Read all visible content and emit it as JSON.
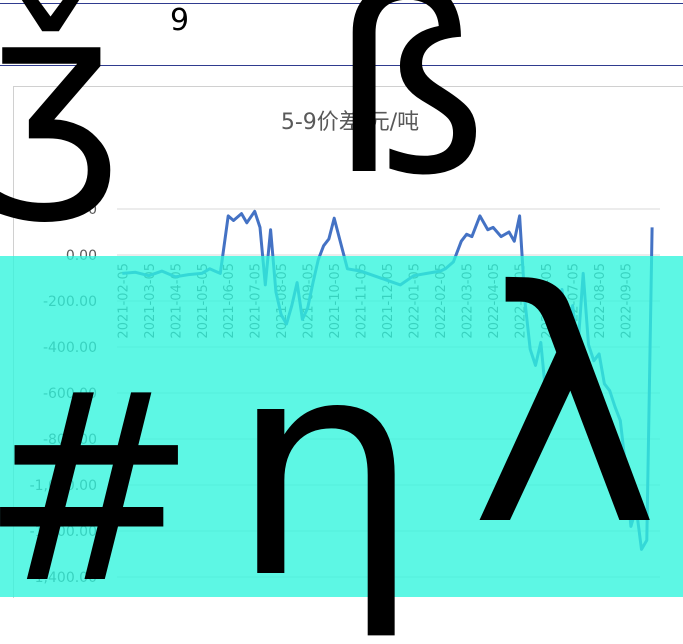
{
  "header": {
    "partial_label": "9"
  },
  "chart_data": {
    "type": "line",
    "title": "5-9价差 元/吨",
    "ylim": [
      -1400,
      200
    ],
    "yticks": [
      200,
      0,
      -200,
      -400,
      -600,
      -800,
      -1000,
      -1200,
      -1400
    ],
    "ytick_labels": [
      "200.00",
      "0.00",
      "-200.00",
      "-400.00",
      "-600.00",
      "-800.00",
      "-1,000.00",
      "-1,200.00",
      "-1,400.00"
    ],
    "xtick_labels": [
      "2021-02-05",
      "2021-03-05",
      "2021-04-05",
      "2021-05-05",
      "2021-06-05",
      "2021-07-05",
      "2021-08-05",
      "2021-09-05",
      "2021-10-05",
      "2021-11-05",
      "2021-12-05",
      "2022-01-05",
      "2022-02-05",
      "2022-03-05",
      "2022-04-05",
      "2022-05-05",
      "2022-06-05",
      "2022-07-05",
      "2022-08-05",
      "2022-09-05"
    ],
    "grid": true,
    "series": [
      {
        "color": "#4472c4",
        "x": [
          0,
          0.5,
          1,
          1.5,
          2,
          2.5,
          3,
          3.3,
          3.5,
          3.7,
          4,
          4.2,
          4.5,
          4.7,
          5,
          5.2,
          5.4,
          5.6,
          5.8,
          6,
          6.2,
          6.4,
          6.6,
          6.8,
          7,
          7.2,
          7.4,
          7.6,
          7.8,
          8,
          8.5,
          9,
          9.5,
          10,
          10.5,
          11,
          11.5,
          12,
          12.2,
          12.5,
          12.8,
          13,
          13.2,
          13.5,
          13.8,
          14,
          14.3,
          14.6,
          14.8,
          15,
          15.2,
          15.4,
          15.6,
          15.8,
          16,
          16.2,
          16.4,
          16.6,
          16.8,
          17,
          17.2,
          17.4,
          17.6,
          17.8,
          18,
          18.2,
          18.4,
          18.6,
          18.8,
          19,
          19.2,
          19.4,
          19.6,
          19.8,
          20
        ],
        "values": [
          -80,
          -75,
          -90,
          -70,
          -95,
          -85,
          -80,
          -60,
          -70,
          -80,
          170,
          150,
          180,
          140,
          190,
          120,
          -130,
          110,
          -160,
          -260,
          -300,
          -220,
          -120,
          -280,
          -230,
          -120,
          -20,
          40,
          70,
          160,
          -60,
          -70,
          -90,
          -110,
          -130,
          -90,
          -80,
          -70,
          -60,
          -30,
          60,
          90,
          80,
          170,
          110,
          120,
          80,
          100,
          60,
          170,
          -200,
          -410,
          -480,
          -380,
          -620,
          -560,
          -460,
          -150,
          -360,
          -220,
          -400,
          -80,
          -390,
          -460,
          -430,
          -560,
          -590,
          -660,
          -720,
          -920,
          -1180,
          -1100,
          -1280,
          -1240,
          120
        ]
      }
    ]
  }
}
